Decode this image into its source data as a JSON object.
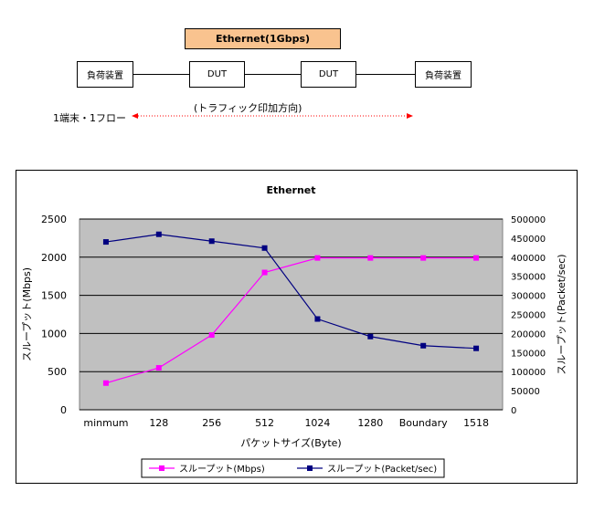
{
  "diagram": {
    "ethernet_label": "Ethernet(1Gbps)",
    "load_left": "負荷装置",
    "dut1": "DUT",
    "dut2": "DUT",
    "load_right": "負荷装置",
    "direction_label": "(トラフィック印加方向)",
    "flow_label": "1端末・1フロー",
    "arrow_color": "#ff0000"
  },
  "chart_data": {
    "type": "line",
    "title": "Ethernet",
    "xlabel": "パケットサイズ(Byte)",
    "ylabel": "スループット(Mbps)",
    "y2label": "スループット(Packet/sec)",
    "categories": [
      "minmum",
      "128",
      "256",
      "512",
      "1024",
      "1280",
      "Boundary",
      "1518"
    ],
    "ylim": [
      0,
      2500
    ],
    "y2lim": [
      0,
      500000
    ],
    "yticks": [
      "0",
      "500",
      "1000",
      "1500",
      "2000",
      "2500"
    ],
    "y2ticks": [
      "0",
      "50000",
      "100000",
      "150000",
      "200000",
      "250000",
      "300000",
      "350000",
      "400000",
      "450000",
      "500000"
    ],
    "grid": true,
    "legend_position": "bottom",
    "series": [
      {
        "name": "スループット(Mbps)",
        "axis": "left",
        "color": "#ff00ff",
        "marker": "square",
        "values": [
          350,
          550,
          980,
          1800,
          1990,
          1990,
          1990,
          1990
        ]
      },
      {
        "name": "スループット(Packet/sec)",
        "axis": "right",
        "color": "#000080",
        "marker": "square",
        "values": [
          440000,
          460000,
          442000,
          424000,
          238000,
          192000,
          168000,
          161000
        ]
      }
    ]
  }
}
